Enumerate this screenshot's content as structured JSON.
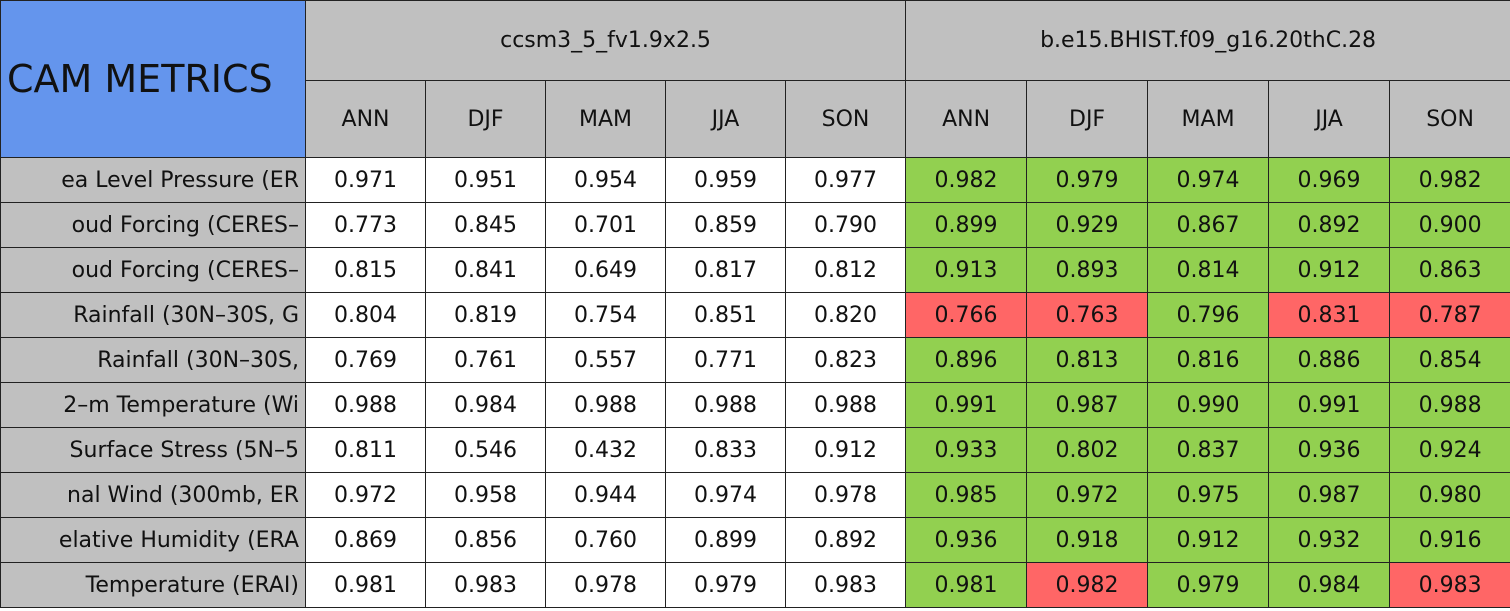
{
  "table": {
    "title": "CAM METRICS",
    "groups": [
      "ccsm3_5_fv1.9x2.5",
      "b.e15.BHIST.f09_g16.20thC.28"
    ],
    "seasons": [
      "ANN",
      "DJF",
      "MAM",
      "JJA",
      "SON"
    ],
    "rows": [
      {
        "label": "ea Level Pressure (ER",
        "values": [
          "0.971",
          "0.951",
          "0.954",
          "0.959",
          "0.977",
          "0.982",
          "0.979",
          "0.974",
          "0.969",
          "0.982"
        ],
        "fills": [
          "#92d050",
          "#92d050",
          "#92d050",
          "#92d050",
          "#92d050"
        ]
      },
      {
        "label": "oud Forcing (CERES–",
        "values": [
          "0.773",
          "0.845",
          "0.701",
          "0.859",
          "0.790",
          "0.899",
          "0.929",
          "0.867",
          "0.892",
          "0.900"
        ],
        "fills": [
          "#92d050",
          "#92d050",
          "#92d050",
          "#92d050",
          "#92d050"
        ]
      },
      {
        "label": "oud Forcing (CERES–",
        "values": [
          "0.815",
          "0.841",
          "0.649",
          "0.817",
          "0.812",
          "0.913",
          "0.893",
          "0.814",
          "0.912",
          "0.863"
        ],
        "fills": [
          "#92d050",
          "#92d050",
          "#92d050",
          "#92d050",
          "#92d050"
        ]
      },
      {
        "label": "Rainfall (30N–30S, G",
        "values": [
          "0.804",
          "0.819",
          "0.754",
          "0.851",
          "0.820",
          "0.766",
          "0.763",
          "0.796",
          "0.831",
          "0.787"
        ],
        "fills": [
          "#ff6666",
          "#ff6666",
          "#92d050",
          "#ff6666",
          "#ff6666"
        ]
      },
      {
        "label": "Rainfall (30N–30S,",
        "values": [
          "0.769",
          "0.761",
          "0.557",
          "0.771",
          "0.823",
          "0.896",
          "0.813",
          "0.816",
          "0.886",
          "0.854"
        ],
        "fills": [
          "#92d050",
          "#92d050",
          "#92d050",
          "#92d050",
          "#92d050"
        ]
      },
      {
        "label": "2–m Temperature (Wi",
        "values": [
          "0.988",
          "0.984",
          "0.988",
          "0.988",
          "0.988",
          "0.991",
          "0.987",
          "0.990",
          "0.991",
          "0.988"
        ],
        "fills": [
          "#92d050",
          "#92d050",
          "#92d050",
          "#92d050",
          "#92d050"
        ]
      },
      {
        "label": "Surface Stress (5N–5",
        "values": [
          "0.811",
          "0.546",
          "0.432",
          "0.833",
          "0.912",
          "0.933",
          "0.802",
          "0.837",
          "0.936",
          "0.924"
        ],
        "fills": [
          "#92d050",
          "#92d050",
          "#92d050",
          "#92d050",
          "#92d050"
        ]
      },
      {
        "label": "nal Wind (300mb, ER",
        "values": [
          "0.972",
          "0.958",
          "0.944",
          "0.974",
          "0.978",
          "0.985",
          "0.972",
          "0.975",
          "0.987",
          "0.980"
        ],
        "fills": [
          "#92d050",
          "#92d050",
          "#92d050",
          "#92d050",
          "#92d050"
        ]
      },
      {
        "label": "elative Humidity (ERA",
        "values": [
          "0.869",
          "0.856",
          "0.760",
          "0.899",
          "0.892",
          "0.936",
          "0.918",
          "0.912",
          "0.932",
          "0.916"
        ],
        "fills": [
          "#92d050",
          "#92d050",
          "#92d050",
          "#92d050",
          "#92d050"
        ]
      },
      {
        "label": "Temperature (ERAI)",
        "values": [
          "0.981",
          "0.983",
          "0.978",
          "0.979",
          "0.983",
          "0.981",
          "0.982",
          "0.979",
          "0.984",
          "0.983"
        ],
        "fills": [
          "#92d050",
          "#ff6666",
          "#92d050",
          "#92d050",
          "#ff6666"
        ]
      }
    ]
  }
}
